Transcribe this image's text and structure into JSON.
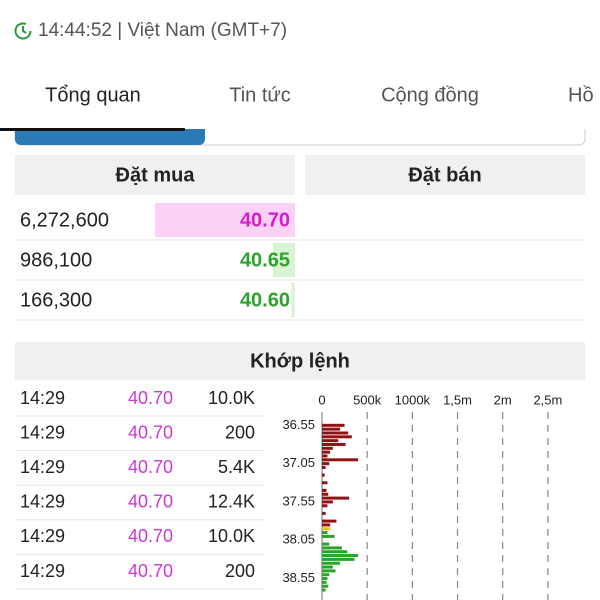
{
  "status": "14:44:52 | Việt Nam (GMT+7)",
  "tabs": [
    "Tổng quan",
    "Tin tức",
    "Cộng đồng",
    "Hồ"
  ],
  "order_book": {
    "buy_header": "Đặt mua",
    "sell_header": "Đặt bán",
    "rows": [
      {
        "volume": {
          "value": 6272600,
          "label": "6,272,600"
        },
        "price": "40.70",
        "color": "#d21fcb",
        "bar_color": "#fbd2f6"
      },
      {
        "volume": {
          "value": 986100,
          "label": "986,100"
        },
        "price": "40.65",
        "color": "#2aa52a",
        "bar_color": "#d8f4d3"
      },
      {
        "volume": {
          "value": 166300,
          "label": "166,300"
        },
        "price": "40.60",
        "color": "#2aa52a",
        "bar_color": "#d8f4d3"
      }
    ]
  },
  "trades": {
    "title": "Khớp lệnh",
    "price_color": "#c93ad0",
    "rows": [
      [
        "14:29",
        "40.70",
        "10.0K"
      ],
      [
        "14:29",
        "40.70",
        "200"
      ],
      [
        "14:29",
        "40.70",
        "5.4K"
      ],
      [
        "14:29",
        "40.70",
        "12.4K"
      ],
      [
        "14:29",
        "40.70",
        "10.0K"
      ],
      [
        "14:29",
        "40.70",
        "200"
      ]
    ]
  },
  "volume_profile": {
    "xlim": [
      0,
      2800
    ],
    "ylim": [
      36.35,
      38.83
    ],
    "xticks": [
      0,
      {
        "value": 500,
        "label": "500k"
      },
      {
        "value": 1000,
        "label": "1000k"
      },
      {
        "value": 1500,
        "label": "1,5m"
      },
      {
        "value": 2000,
        "label": "2m"
      },
      {
        "value": 2500,
        "label": "2,5m"
      }
    ],
    "yticks": [
      36.55,
      37.05,
      37.55,
      38.05,
      38.55
    ],
    "bar_groups": [
      {
        "color": "#8e1414",
        "prices": [
          36.55,
          36.6,
          36.65,
          36.7,
          36.75,
          36.8,
          36.85,
          36.9,
          36.95,
          37.0,
          37.05,
          37.1,
          37.2,
          37.3,
          37.4,
          37.45,
          37.5,
          37.55,
          37.6,
          37.7,
          37.8,
          37.85
        ],
        "volumes": [
          250,
          200,
          290,
          330,
          180,
          260,
          120,
          90,
          60,
          400,
          80,
          40,
          30,
          60,
          50,
          70,
          300,
          120,
          60,
          40,
          160,
          90
        ]
      },
      {
        "color": "#e8c020",
        "prices": [
          37.9
        ],
        "volumes": [
          90
        ]
      },
      {
        "color": "#28a428",
        "prices": [
          37.95,
          38.0,
          38.1,
          38.15,
          38.2,
          38.25,
          38.3,
          38.35,
          38.4,
          38.45,
          38.5,
          38.55,
          38.6,
          38.65,
          38.7
        ],
        "volumes": [
          60,
          140,
          80,
          220,
          280,
          400,
          360,
          200,
          120,
          150,
          80,
          60,
          50,
          70,
          40
        ]
      }
    ]
  }
}
